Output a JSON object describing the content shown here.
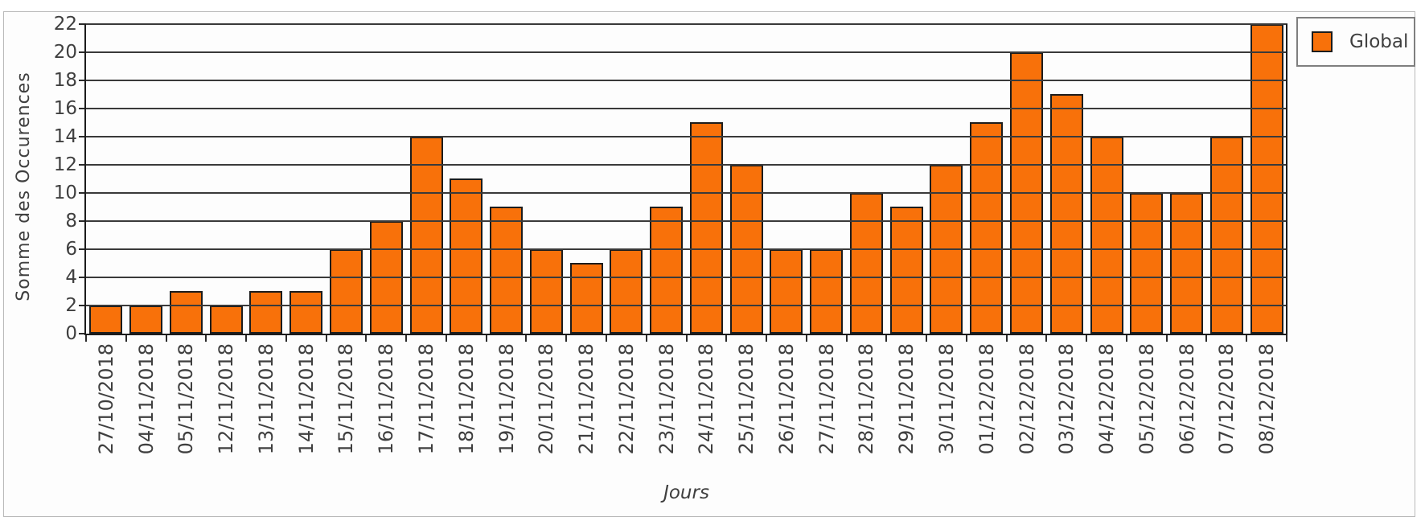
{
  "chart_data": {
    "type": "bar",
    "title": "",
    "categories": [
      "27/10/2018",
      "04/11/2018",
      "05/11/2018",
      "12/11/2018",
      "13/11/2018",
      "14/11/2018",
      "15/11/2018",
      "16/11/2018",
      "17/11/2018",
      "18/11/2018",
      "19/11/2018",
      "20/11/2018",
      "21/11/2018",
      "22/11/2018",
      "23/11/2018",
      "24/11/2018",
      "25/11/2018",
      "26/11/2018",
      "27/11/2018",
      "28/11/2018",
      "29/11/2018",
      "30/11/2018",
      "01/12/2018",
      "02/12/2018",
      "03/12/2018",
      "04/12/2018",
      "05/12/2018",
      "06/12/2018",
      "07/12/2018",
      "08/12/2018"
    ],
    "values": [
      2,
      2,
      3,
      2,
      3,
      3,
      6,
      8,
      14,
      11,
      9,
      6,
      5,
      6,
      9,
      15,
      12,
      6,
      6,
      10,
      9,
      12,
      15,
      20,
      17,
      14,
      10,
      10,
      14,
      22
    ],
    "series_name": "Global",
    "xlabel": "Jours",
    "ylabel": "Somme des Occurences",
    "ylim": [
      0,
      22
    ],
    "ytick_step": 2,
    "grid": "horizontal",
    "legend": {
      "position": "top-right",
      "entries": [
        {
          "label": "Global",
          "color": "#f8710a"
        }
      ]
    },
    "colors": {
      "bar_fill": "#f8710a",
      "bar_border": "#1c1c1c",
      "grid_line": "#3a3a3a",
      "axis_line": "#1c1c1c",
      "tick_mark": "#2a2a2a",
      "text": "#3f3f3f",
      "legend_border": "#7f7f7f",
      "frame_border": "#b9b9b9",
      "background": "#fdfdfd"
    }
  }
}
